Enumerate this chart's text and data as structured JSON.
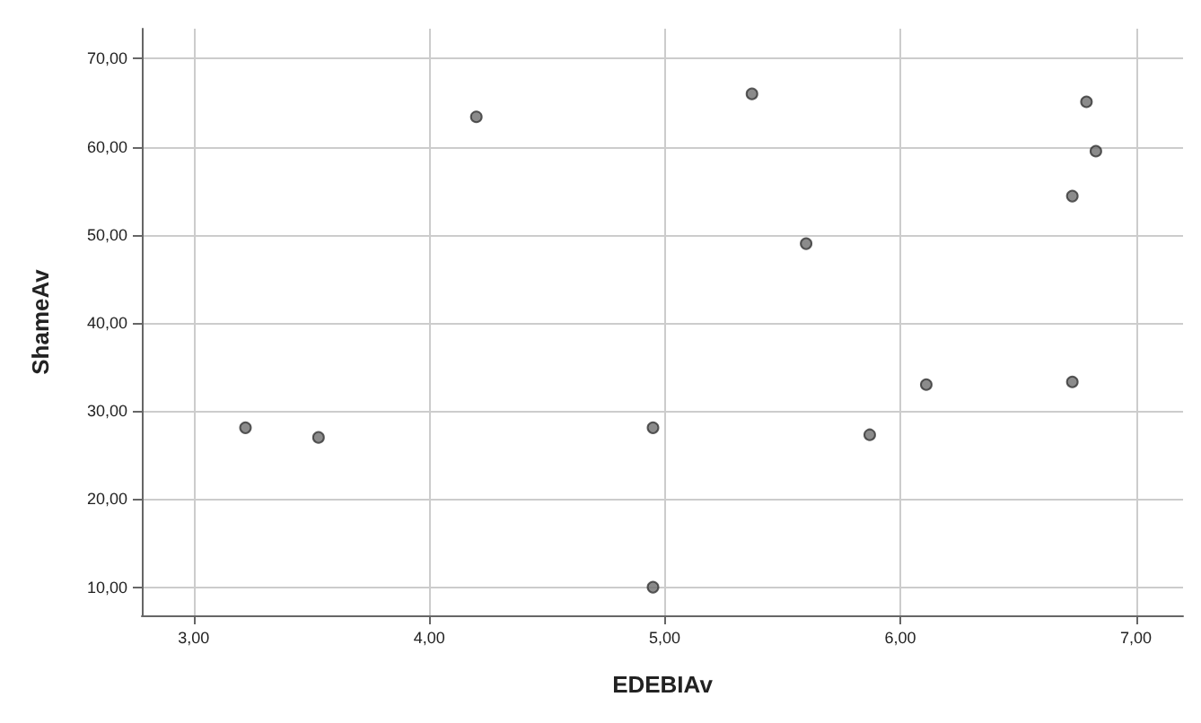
{
  "chart_data": {
    "type": "scatter",
    "xlabel": "EDEBIAv",
    "ylabel": "ShameAv",
    "x": [
      3.22,
      3.53,
      4.2,
      4.95,
      4.95,
      5.37,
      5.6,
      5.87,
      6.11,
      6.73,
      6.73,
      6.79,
      6.83
    ],
    "series": [
      {
        "color": "#6e6e6e",
        "values": [
          28.1,
          27.0,
          63.4,
          28.1,
          10.0,
          66.0,
          49.0,
          27.3,
          33.0,
          33.3,
          54.4,
          65.1,
          59.5
        ]
      }
    ],
    "xlim": [
      2.78,
      7.2
    ],
    "ylim": [
      6.8,
      73.4
    ],
    "xticks": [
      {
        "value": 3,
        "label": "3,00"
      },
      {
        "value": 4,
        "label": "4,00"
      },
      {
        "value": 5,
        "label": "5,00"
      },
      {
        "value": 6,
        "label": "6,00"
      },
      {
        "value": 7,
        "label": "7,00"
      }
    ],
    "yticks": [
      {
        "value": 10,
        "label": "10,00"
      },
      {
        "value": 20,
        "label": "20,00"
      },
      {
        "value": 30,
        "label": "30,00"
      },
      {
        "value": 40,
        "label": "40,00"
      },
      {
        "value": 50,
        "label": "50,00"
      },
      {
        "value": 60,
        "label": "60,00"
      },
      {
        "value": 70,
        "label": "70,00"
      }
    ],
    "grid": true,
    "marker": "circle"
  }
}
